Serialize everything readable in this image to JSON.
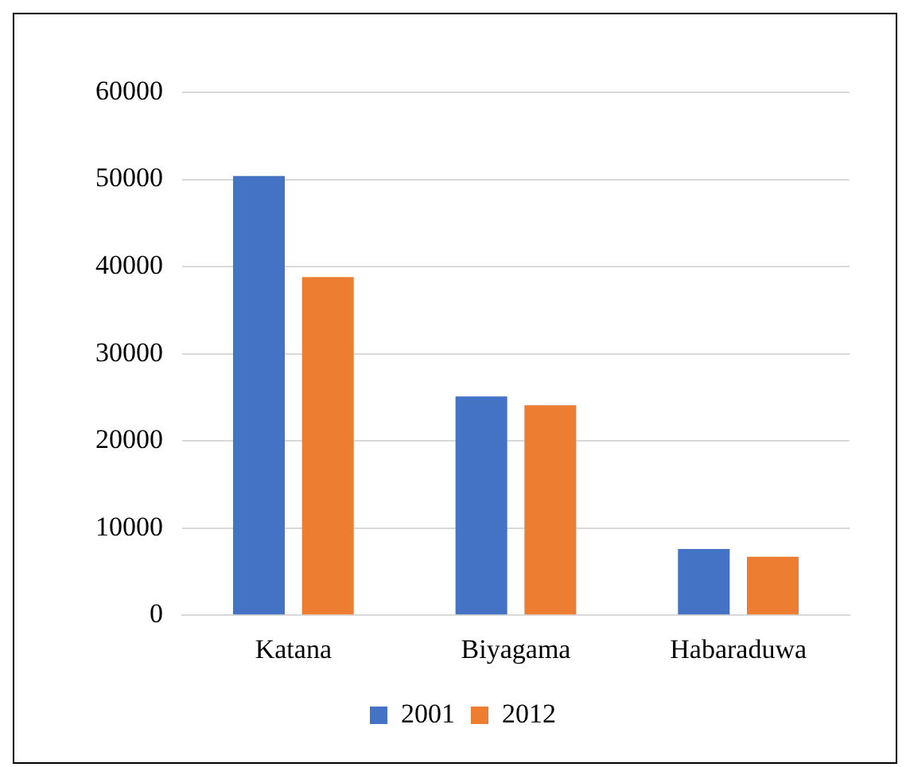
{
  "chart_data": {
    "type": "bar",
    "categories": [
      "Katana",
      "Biyagama",
      "Habaraduwa"
    ],
    "series": [
      {
        "name": "2001",
        "color": "#4472c4",
        "values": [
          50400,
          25100,
          7600
        ]
      },
      {
        "name": "2012",
        "color": "#ed7d31",
        "values": [
          38800,
          24100,
          6700
        ]
      }
    ],
    "ylim": [
      0,
      60000
    ],
    "yticks": [
      0,
      10000,
      20000,
      30000,
      40000,
      50000,
      60000
    ],
    "grid": "y",
    "legend": "bottom"
  }
}
